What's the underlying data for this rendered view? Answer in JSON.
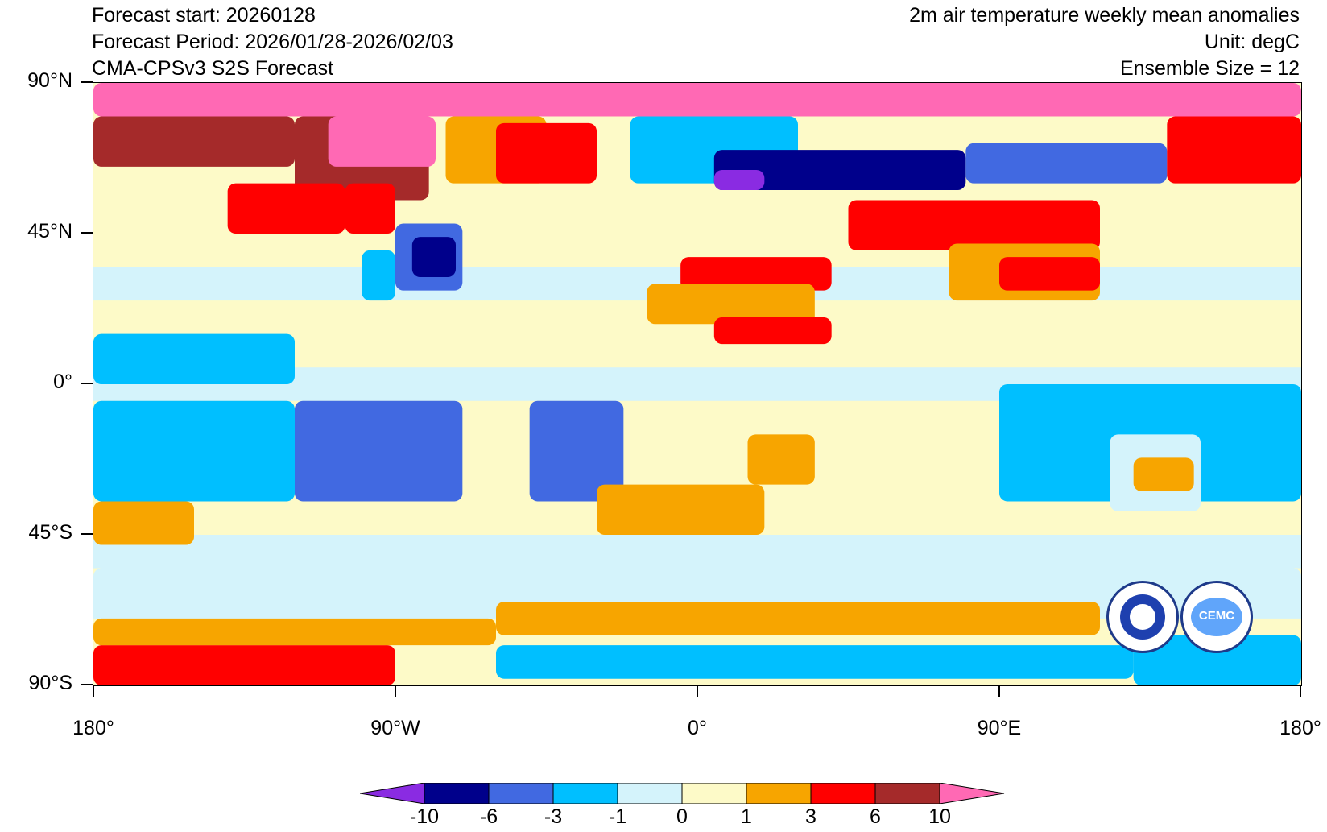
{
  "header": {
    "left_lines": [
      "Forecast start: 20260128",
      "Forecast Period: 2026/01/28-2026/02/03",
      "CMA-CPSv3 S2S Forecast"
    ],
    "right_lines": [
      "2m air temperature weekly mean anomalies",
      "Unit: degC",
      "Ensemble Size = 12"
    ]
  },
  "axes": {
    "lat_labels": [
      "90°N",
      "45°N",
      "0°",
      "45°S",
      "90°S"
    ],
    "lon_labels": [
      "180°",
      "90°W",
      "0°",
      "90°E",
      "180°"
    ]
  },
  "colorbar": {
    "labels": [
      "-10",
      "-6",
      "-3",
      "-1",
      "0",
      "1",
      "3",
      "6",
      "10"
    ],
    "colors": [
      "#8a2be2",
      "#00008b",
      "#4169e1",
      "#00bfff",
      "#d4f3fb",
      "#fdfac8",
      "#f7a500",
      "#ff0000",
      "#a52a2a",
      "#ff69b4"
    ]
  },
  "logos": [
    {
      "name": "cma-logo",
      "text": "CHINA METEOROLOGICAL ADMINISTRATION"
    },
    {
      "name": "cemc-logo",
      "text": "CEMC"
    }
  ],
  "map": {
    "type": "heatmap",
    "title": "2m air temperature weekly mean anomalies",
    "unit": "degC",
    "extent": {
      "lon": [
        -180,
        180
      ],
      "lat": [
        -90,
        90
      ]
    },
    "regions": [
      {
        "lon": [
          -180,
          180
        ],
        "lat": [
          80,
          90
        ],
        "level": 9
      },
      {
        "lon": [
          -180,
          -120
        ],
        "lat": [
          65,
          80
        ],
        "level": 8
      },
      {
        "lon": [
          -120,
          -80
        ],
        "lat": [
          55,
          80
        ],
        "level": 8
      },
      {
        "lon": [
          -110,
          -78
        ],
        "lat": [
          65,
          80
        ],
        "level": 9
      },
      {
        "lon": [
          -140,
          -105
        ],
        "lat": [
          45,
          60
        ],
        "level": 7
      },
      {
        "lon": [
          -105,
          -90
        ],
        "lat": [
          45,
          60
        ],
        "level": 7
      },
      {
        "lon": [
          -75,
          -45
        ],
        "lat": [
          60,
          80
        ],
        "level": 6
      },
      {
        "lon": [
          -60,
          -30
        ],
        "lat": [
          60,
          78
        ],
        "level": 7
      },
      {
        "lon": [
          -90,
          -70
        ],
        "lat": [
          28,
          48
        ],
        "level": 2
      },
      {
        "lon": [
          -85,
          -72
        ],
        "lat": [
          32,
          44
        ],
        "level": 1
      },
      {
        "lon": [
          -100,
          -90
        ],
        "lat": [
          25,
          40
        ],
        "level": 3
      },
      {
        "lon": [
          -20,
          30
        ],
        "lat": [
          60,
          80
        ],
        "level": 3
      },
      {
        "lon": [
          5,
          80
        ],
        "lat": [
          58,
          70
        ],
        "level": 1
      },
      {
        "lon": [
          5,
          20
        ],
        "lat": [
          58,
          64
        ],
        "level": 0
      },
      {
        "lon": [
          80,
          140
        ],
        "lat": [
          60,
          72
        ],
        "level": 2
      },
      {
        "lon": [
          140,
          180
        ],
        "lat": [
          60,
          80
        ],
        "level": 7
      },
      {
        "lon": [
          45,
          120
        ],
        "lat": [
          40,
          55
        ],
        "level": 7
      },
      {
        "lon": [
          60,
          100
        ],
        "lat": [
          42,
          52
        ],
        "level": 7
      },
      {
        "lon": [
          -5,
          40
        ],
        "lat": [
          28,
          38
        ],
        "level": 7
      },
      {
        "lon": [
          -15,
          35
        ],
        "lat": [
          18,
          30
        ],
        "level": 6
      },
      {
        "lon": [
          5,
          40
        ],
        "lat": [
          12,
          20
        ],
        "level": 7
      },
      {
        "lon": [
          75,
          120
        ],
        "lat": [
          25,
          42
        ],
        "level": 6
      },
      {
        "lon": [
          90,
          120
        ],
        "lat": [
          28,
          38
        ],
        "level": 7
      },
      {
        "lon": [
          -180,
          -120
        ],
        "lat": [
          0,
          15
        ],
        "level": 3
      },
      {
        "lon": [
          -180,
          -120
        ],
        "lat": [
          -35,
          -5
        ],
        "level": 3
      },
      {
        "lon": [
          -120,
          -70
        ],
        "lat": [
          -35,
          -5
        ],
        "level": 2
      },
      {
        "lon": [
          -50,
          -22
        ],
        "lat": [
          -35,
          -5
        ],
        "level": 2
      },
      {
        "lon": [
          90,
          180
        ],
        "lat": [
          -35,
          0
        ],
        "level": 3
      },
      {
        "lon": [
          123,
          150
        ],
        "lat": [
          -38,
          -15
        ],
        "level": 4
      },
      {
        "lon": [
          130,
          148
        ],
        "lat": [
          -32,
          -22
        ],
        "level": 6
      },
      {
        "lon": [
          15,
          35
        ],
        "lat": [
          -30,
          -15
        ],
        "level": 6
      },
      {
        "lon": [
          -30,
          20
        ],
        "lat": [
          -45,
          -30
        ],
        "level": 6
      },
      {
        "lon": [
          -180,
          -150
        ],
        "lat": [
          -48,
          -35
        ],
        "level": 6
      },
      {
        "lon": [
          -180,
          180
        ],
        "lat": [
          -65,
          -55
        ],
        "level": 4
      },
      {
        "lon": [
          -60,
          120
        ],
        "lat": [
          -75,
          -65
        ],
        "level": 6
      },
      {
        "lon": [
          -180,
          -90
        ],
        "lat": [
          -90,
          -78
        ],
        "level": 7
      },
      {
        "lon": [
          -180,
          -60
        ],
        "lat": [
          -78,
          -70
        ],
        "level": 6
      },
      {
        "lon": [
          -60,
          130
        ],
        "lat": [
          -88,
          -78
        ],
        "level": 3
      },
      {
        "lon": [
          130,
          180
        ],
        "lat": [
          -90,
          -75
        ],
        "level": 3
      }
    ]
  }
}
